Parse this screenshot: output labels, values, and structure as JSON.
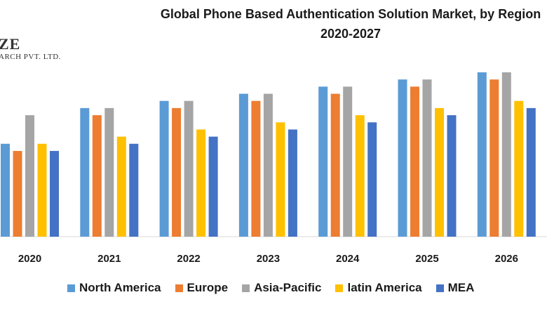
{
  "title_line1": "Global Phone Based Authentication Solution Market, by Region",
  "title_line2": "2020-2027",
  "logo": {
    "line1": "ZE",
    "line2": "ARCH PVT. LTD."
  },
  "chart_data": {
    "type": "bar",
    "categories": [
      "2020",
      "2021",
      "2022",
      "2023",
      "2024",
      "2025",
      "2026"
    ],
    "series": [
      {
        "name": "North America",
        "color": "#5B9BD5",
        "values": [
          13,
          18,
          19,
          20,
          21,
          22,
          23
        ]
      },
      {
        "name": "Europe",
        "color": "#ED7D31",
        "values": [
          12,
          17,
          18,
          19,
          20,
          21,
          22
        ]
      },
      {
        "name": "Asia-Pacific",
        "color": "#A5A5A5",
        "values": [
          17,
          18,
          19,
          20,
          21,
          22,
          23
        ]
      },
      {
        "name": "latin America",
        "color": "#FFC000",
        "values": [
          13,
          14,
          15,
          16,
          17,
          18,
          19
        ]
      },
      {
        "name": "MEA",
        "color": "#4472C4",
        "values": [
          12,
          13,
          14,
          15,
          16,
          17,
          18
        ]
      }
    ],
    "ylim": [
      0,
      23
    ],
    "grid": false,
    "legend_position": "bottom"
  }
}
